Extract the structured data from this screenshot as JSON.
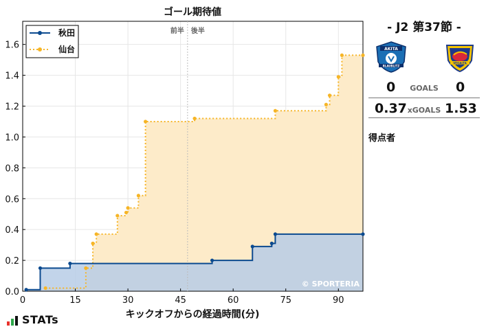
{
  "chart_data": {
    "type": "line",
    "title": "ゴール期待値",
    "xlabel": "キックオフからの経過時間(分)",
    "ylabel": "",
    "xlim": [
      0,
      97
    ],
    "ylim": [
      0,
      1.75
    ],
    "x_ticks": [
      0,
      15,
      30,
      45,
      60,
      75,
      90
    ],
    "y_ticks": [
      0.0,
      0.2,
      0.4,
      0.6,
      0.8,
      1.0,
      1.2,
      1.4,
      1.6
    ],
    "y_tick_labels": [
      "0.0",
      "0.2",
      "0.4",
      "0.6",
      "0.8",
      "1.0",
      "1.2",
      "1.4",
      "1.6"
    ],
    "halftime_minute": 47,
    "half_labels": {
      "first": "前半",
      "second": "後半"
    },
    "legend_position": "top-left",
    "series": [
      {
        "name": "秋田",
        "color": "#0b4a8f",
        "fill": "#b7cce6",
        "style": "solid",
        "points": [
          [
            1,
            0.01
          ],
          [
            5,
            0.15
          ],
          [
            13.5,
            0.18
          ],
          [
            54,
            0.2
          ],
          [
            65.5,
            0.29
          ],
          [
            71,
            0.31
          ],
          [
            72,
            0.37
          ],
          [
            97,
            0.37
          ]
        ]
      },
      {
        "name": "仙台",
        "color": "#f6b526",
        "fill": "#fdebc9",
        "style": "dotted",
        "points": [
          [
            6.5,
            0.02
          ],
          [
            18,
            0.15
          ],
          [
            20,
            0.31
          ],
          [
            21,
            0.37
          ],
          [
            27,
            0.49
          ],
          [
            29.5,
            0.51
          ],
          [
            30,
            0.54
          ],
          [
            33,
            0.62
          ],
          [
            35,
            1.1
          ],
          [
            49,
            1.12
          ],
          [
            72,
            1.17
          ],
          [
            86.5,
            1.21
          ],
          [
            87.5,
            1.27
          ],
          [
            90,
            1.39
          ],
          [
            91,
            1.53
          ],
          [
            97,
            1.53
          ]
        ]
      }
    ],
    "watermark": "© SPORTERIA"
  },
  "match": {
    "title": "- J2 第37節 -",
    "home_goals": "0",
    "away_goals": "0",
    "goals_label": "GOALS",
    "home_xg": "0.37",
    "away_xg": "1.53",
    "xg_label": "xGOALS",
    "scorers_label": "得点者"
  },
  "home_logo": {
    "text": "AKITA",
    "sub": "BLAUBLITZ",
    "colors": [
      "#1b6fb5",
      "#0d2f6b",
      "#ffffff"
    ]
  },
  "away_logo": {
    "text": "VEGALTA",
    "colors": [
      "#f5c400",
      "#1d3a8a",
      "#d9283a"
    ]
  },
  "footer": {
    "brand": "STATs",
    "bar_colors": [
      "#e8322b",
      "#2ea84a",
      "#111111"
    ]
  }
}
